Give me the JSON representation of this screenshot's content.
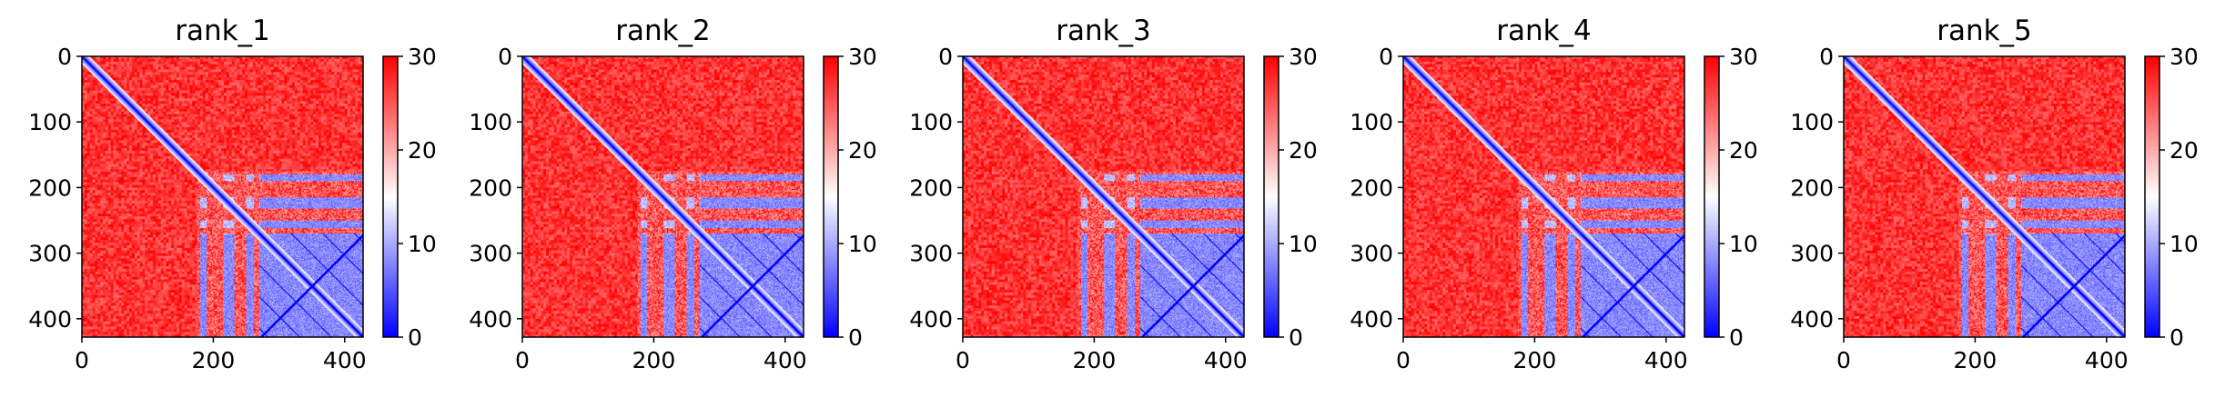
{
  "chart_data": [
    {
      "type": "heatmap",
      "title": "rank_1",
      "n": 428,
      "xticks": [
        0,
        200,
        400
      ],
      "yticks": [
        0,
        100,
        200,
        300,
        400
      ],
      "colorbar": {
        "ticks": [
          0,
          10,
          20,
          30
        ],
        "vmin": 0,
        "vmax": 30,
        "colors": [
          "#0000ff",
          "#ffffff",
          "#ff0000"
        ]
      },
      "blue_blocks": [
        [
          270,
          428
        ],
        [
          180,
          190
        ],
        [
          215,
          232
        ],
        [
          250,
          262
        ]
      ],
      "red_default": 30
    },
    {
      "type": "heatmap",
      "title": "rank_2",
      "n": 428,
      "xticks": [
        0,
        200,
        400
      ],
      "yticks": [
        0,
        100,
        200,
        300,
        400
      ],
      "colorbar": {
        "ticks": [
          0,
          10,
          20,
          30
        ],
        "vmin": 0,
        "vmax": 30,
        "colors": [
          "#0000ff",
          "#ffffff",
          "#ff0000"
        ]
      },
      "blue_blocks": [
        [
          270,
          428
        ],
        [
          180,
          190
        ],
        [
          215,
          232
        ],
        [
          250,
          262
        ]
      ],
      "red_default": 30
    },
    {
      "type": "heatmap",
      "title": "rank_3",
      "n": 428,
      "xticks": [
        0,
        200,
        400
      ],
      "yticks": [
        0,
        100,
        200,
        300,
        400
      ],
      "colorbar": {
        "ticks": [
          0,
          10,
          20,
          30
        ],
        "vmin": 0,
        "vmax": 30,
        "colors": [
          "#0000ff",
          "#ffffff",
          "#ff0000"
        ]
      },
      "blue_blocks": [
        [
          270,
          428
        ],
        [
          180,
          190
        ],
        [
          215,
          232
        ],
        [
          250,
          262
        ]
      ],
      "red_default": 30
    },
    {
      "type": "heatmap",
      "title": "rank_4",
      "n": 428,
      "xticks": [
        0,
        200,
        400
      ],
      "yticks": [
        0,
        100,
        200,
        300,
        400
      ],
      "colorbar": {
        "ticks": [
          0,
          10,
          20,
          30
        ],
        "vmin": 0,
        "vmax": 30,
        "colors": [
          "#0000ff",
          "#ffffff",
          "#ff0000"
        ]
      },
      "blue_blocks": [
        [
          270,
          428
        ],
        [
          180,
          190
        ],
        [
          215,
          232
        ],
        [
          250,
          262
        ]
      ],
      "red_default": 30
    },
    {
      "type": "heatmap",
      "title": "rank_5",
      "n": 428,
      "xticks": [
        0,
        200,
        400
      ],
      "yticks": [
        0,
        100,
        200,
        300,
        400
      ],
      "colorbar": {
        "ticks": [
          0,
          10,
          20,
          30
        ],
        "vmin": 0,
        "vmax": 30,
        "colors": [
          "#0000ff",
          "#ffffff",
          "#ff0000"
        ]
      },
      "blue_blocks": [
        [
          270,
          428
        ],
        [
          180,
          190
        ],
        [
          215,
          232
        ],
        [
          250,
          262
        ]
      ],
      "red_default": 30
    }
  ]
}
